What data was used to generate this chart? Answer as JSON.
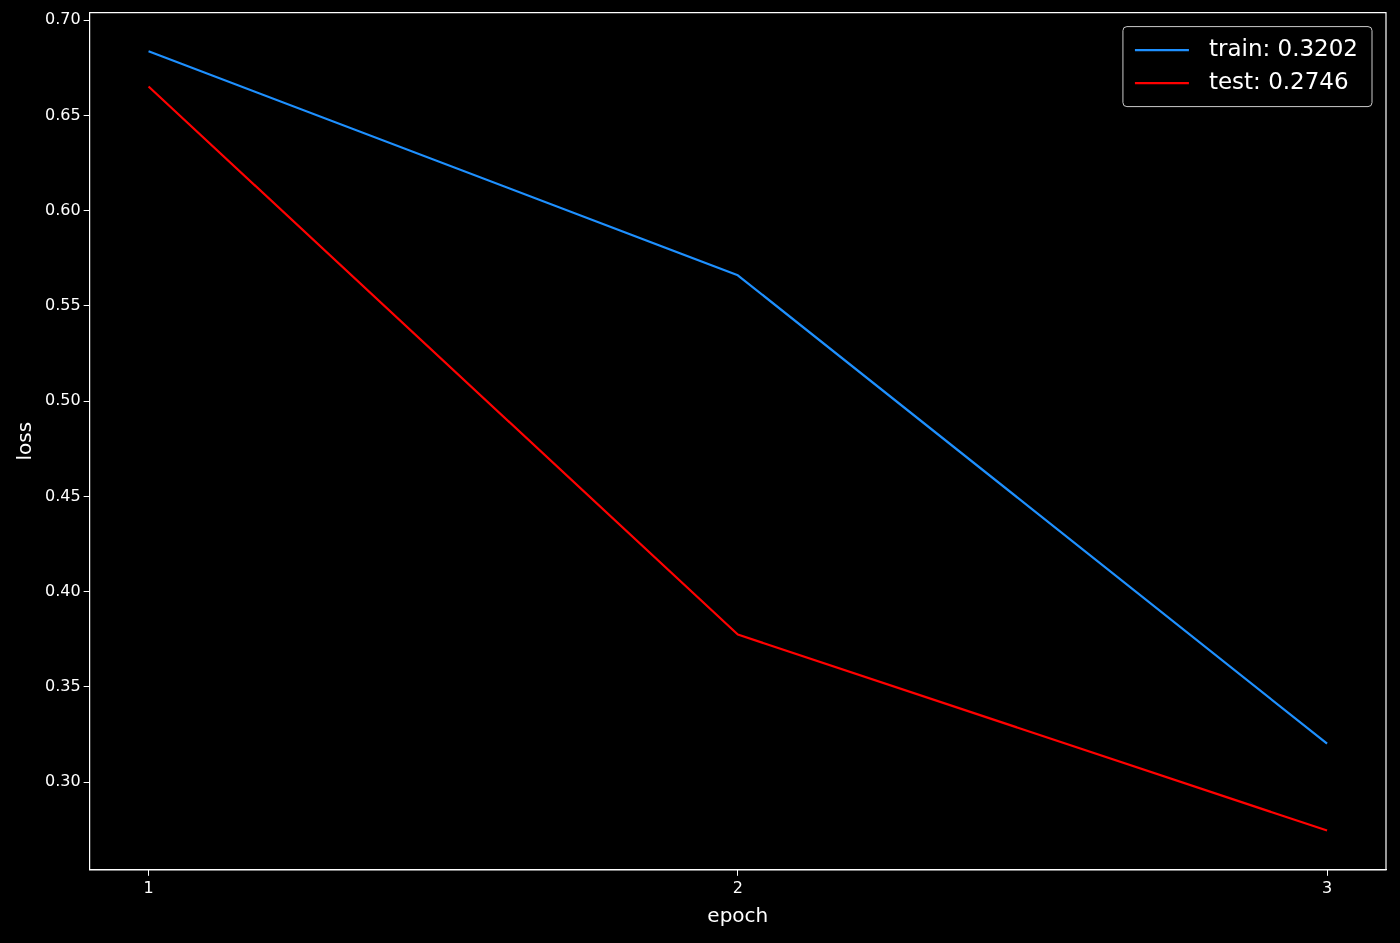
{
  "chart_data": {
    "type": "line",
    "xlabel": "epoch",
    "ylabel": "loss",
    "x": [
      1,
      2,
      3
    ],
    "series": [
      {
        "name": "train: 0.3202",
        "color": "#1e90ff",
        "values": [
          0.6837,
          0.5661,
          0.3202
        ]
      },
      {
        "name": "test: 0.2746",
        "color": "#ff0000",
        "values": [
          0.6652,
          0.3775,
          0.2746
        ]
      }
    ],
    "xlim": [
      0.9,
      3.1
    ],
    "xticks": [
      1,
      2,
      3
    ],
    "ylim": [
      0.254,
      0.704
    ],
    "yticks": [
      {
        "value": 0.3,
        "label": "0.30"
      },
      {
        "value": 0.35,
        "label": "0.35"
      },
      {
        "value": 0.4,
        "label": "0.40"
      },
      {
        "value": 0.45,
        "label": "0.45"
      },
      {
        "value": 0.5,
        "label": "0.50"
      },
      {
        "value": 0.55,
        "label": "0.55"
      },
      {
        "value": 0.6,
        "label": "0.60"
      },
      {
        "value": 0.65,
        "label": "0.65"
      },
      {
        "value": 0.7,
        "label": "0.70"
      }
    ],
    "grid": false,
    "legend": "top right",
    "marker": "none",
    "line_style": "solid"
  }
}
